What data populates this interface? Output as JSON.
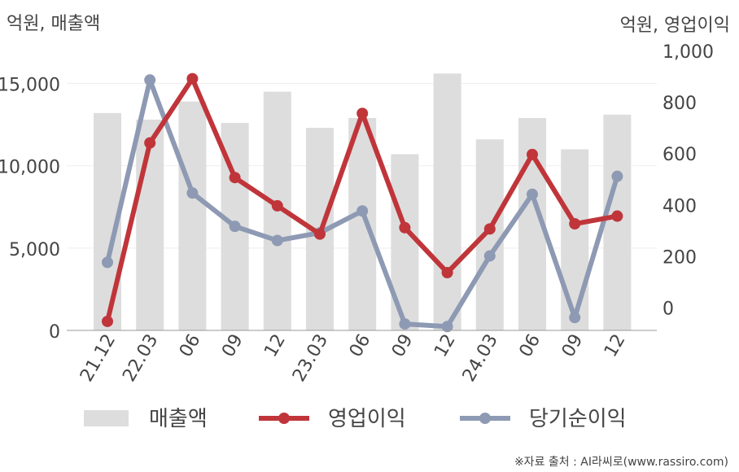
{
  "chart_data": {
    "type": "bar",
    "categories": [
      "21.12",
      "22.03",
      "06",
      "09",
      "12",
      "23.03",
      "06",
      "09",
      "12",
      "24.03",
      "06",
      "09",
      "12"
    ],
    "left_unit_label": "억원, 매출액",
    "right_unit_label": "억원, 영업이익",
    "y_left": {
      "min": 0,
      "max": 17000,
      "ticks": [
        0,
        5000,
        10000,
        15000
      ],
      "tick_labels": [
        "0",
        "5,000",
        "10,000",
        "15,000"
      ]
    },
    "y_right": {
      "min": -90,
      "max": 1000,
      "ticks": [
        0,
        200,
        400,
        600,
        800,
        1000
      ],
      "tick_labels": [
        "0",
        "200",
        "400",
        "600",
        "800",
        "1,000"
      ]
    },
    "series": [
      {
        "name": "매출액",
        "type": "bar",
        "axis": "left",
        "color": "#dddddd",
        "values": [
          13200,
          12800,
          13900,
          12600,
          14500,
          12300,
          12900,
          10700,
          15600,
          11600,
          12900,
          11000,
          13100
        ]
      },
      {
        "name": "영업이익",
        "type": "line",
        "axis": "right",
        "color": "#c0353a",
        "values": [
          -55,
          640,
          890,
          505,
          395,
          285,
          755,
          310,
          135,
          305,
          595,
          325,
          355
        ]
      },
      {
        "name": "당기순이익",
        "type": "line",
        "axis": "right",
        "color": "#8e9ab3",
        "values": [
          175,
          885,
          445,
          315,
          260,
          290,
          375,
          -65,
          -75,
          200,
          440,
          -40,
          510
        ]
      }
    ],
    "grid": true,
    "legend_position": "bottom"
  },
  "source": "※자료 출처 : AI라씨로(www.rassiro.com)"
}
